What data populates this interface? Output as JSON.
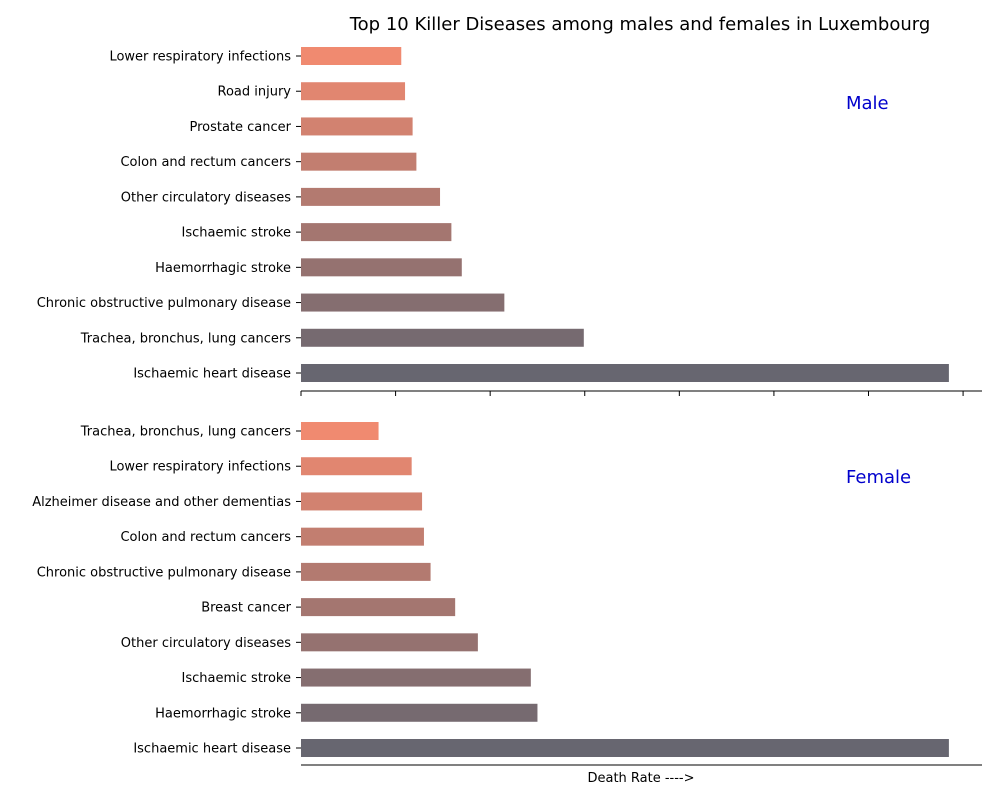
{
  "chart_data": {
    "type": "bar",
    "orientation": "horizontal",
    "title": "Top 10 Killer Diseases among males and females in Luxembourg",
    "xlabel": "Death Rate ---->",
    "xlim": [
      0,
      72
    ],
    "x_tick_values": [
      0,
      10,
      20,
      30,
      40,
      50,
      60,
      70
    ],
    "x_tick_labels_shown": false,
    "grid": false,
    "bar_color_top": "#f08a70",
    "bar_color_bottom": "#676670",
    "label_color": "#0000cc",
    "panels": [
      {
        "label": "Male",
        "categories": [
          "Lower respiratory infections",
          "Road injury",
          "Prostate cancer",
          "Colon and rectum cancers",
          "Other circulatory diseases",
          "Ischaemic stroke",
          "Haemorrhagic stroke",
          "Chronic obstructive pulmonary disease",
          "Trachea, bronchus, lung cancers",
          "Ischaemic heart disease"
        ],
        "values": [
          10.6,
          11.0,
          11.8,
          12.2,
          14.7,
          15.9,
          17.0,
          21.5,
          29.9,
          68.5
        ]
      },
      {
        "label": "Female",
        "categories": [
          "Trachea, bronchus, lung cancers",
          "Lower respiratory infections",
          "Alzheimer disease and other dementias",
          "Colon and rectum cancers",
          "Chronic obstructive pulmonary disease",
          "Breast cancer",
          "Other circulatory diseases",
          "Ischaemic stroke",
          "Haemorrhagic stroke",
          "Ischaemic heart disease"
        ],
        "values": [
          8.2,
          11.7,
          12.8,
          13.0,
          13.7,
          16.3,
          18.7,
          24.3,
          25.0,
          68.5
        ]
      }
    ]
  }
}
